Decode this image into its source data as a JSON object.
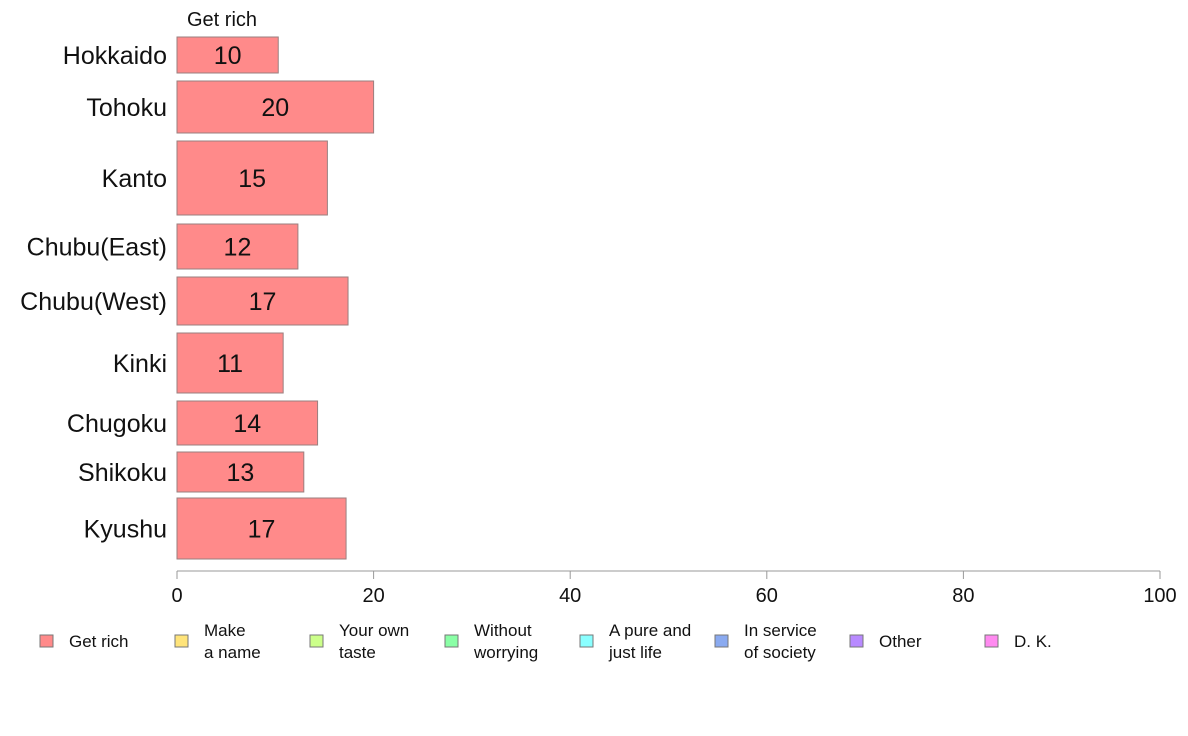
{
  "chart_data": {
    "type": "bar",
    "orientation": "horizontal",
    "stacked": true,
    "series_title": "Get rich",
    "categories": [
      "Hokkaido",
      "Tohoku",
      "Kanto",
      "Chubu(East)",
      "Chubu(West)",
      "Kinki",
      "Chugoku",
      "Shikoku",
      "Kyushu"
    ],
    "series": [
      {
        "name": "Get rich",
        "values": [
          10.3,
          20.0,
          15.3,
          12.3,
          17.4,
          10.8,
          14.3,
          12.9,
          17.2
        ],
        "data_labels": [
          "10",
          "20",
          "15",
          "12",
          "17",
          "11",
          "14",
          "13",
          "17"
        ],
        "color": "#ff8a8a"
      }
    ],
    "xlim": [
      0,
      100
    ],
    "xticks": [
      0,
      20,
      40,
      60,
      80,
      100
    ],
    "grid": false,
    "legend_position": "bottom",
    "legend": [
      {
        "lines": [
          "Get rich"
        ],
        "color": "#ff8a8a"
      },
      {
        "lines": [
          "Make",
          "a name"
        ],
        "color": "#ffe47a"
      },
      {
        "lines": [
          "Your own",
          "taste"
        ],
        "color": "#ccff8a"
      },
      {
        "lines": [
          "Without",
          "worrying"
        ],
        "color": "#8affa6"
      },
      {
        "lines": [
          "A pure and",
          "just life"
        ],
        "color": "#8affff"
      },
      {
        "lines": [
          "In service",
          "of society"
        ],
        "color": "#8aaaf0"
      },
      {
        "lines": [
          "Other"
        ],
        "color": "#b88aff"
      },
      {
        "lines": [
          "D. K."
        ],
        "color": "#ff8af0"
      }
    ]
  }
}
